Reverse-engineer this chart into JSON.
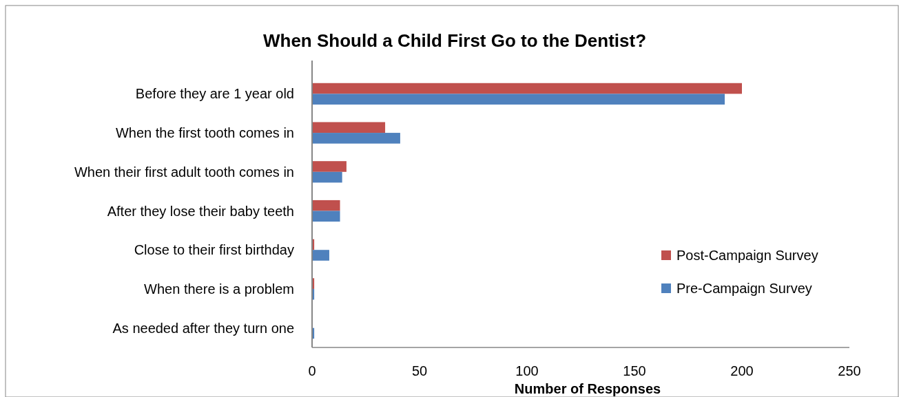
{
  "chart_data": {
    "type": "bar",
    "orientation": "horizontal",
    "title": "When Should a Child First Go to the Dentist?",
    "xlabel": "Number of Responses",
    "categories": [
      "Before they are 1 year old",
      "When the first tooth comes in",
      "When their first adult tooth comes in",
      "After they lose their baby teeth",
      "Close to their first birthday",
      "When there is a problem",
      "As needed after they turn one"
    ],
    "series": [
      {
        "name": "Post-Campaign Survey",
        "color": "#c0504d",
        "values": [
          200,
          34,
          16,
          13,
          1,
          1,
          0
        ]
      },
      {
        "name": "Pre-Campaign Survey",
        "color": "#4f81bd",
        "values": [
          192,
          41,
          14,
          13,
          8,
          1,
          1
        ]
      }
    ],
    "xlim": [
      0,
      250
    ],
    "xticks": [
      0,
      50,
      100,
      150,
      200,
      250
    ],
    "grid": false,
    "legend": "right"
  }
}
